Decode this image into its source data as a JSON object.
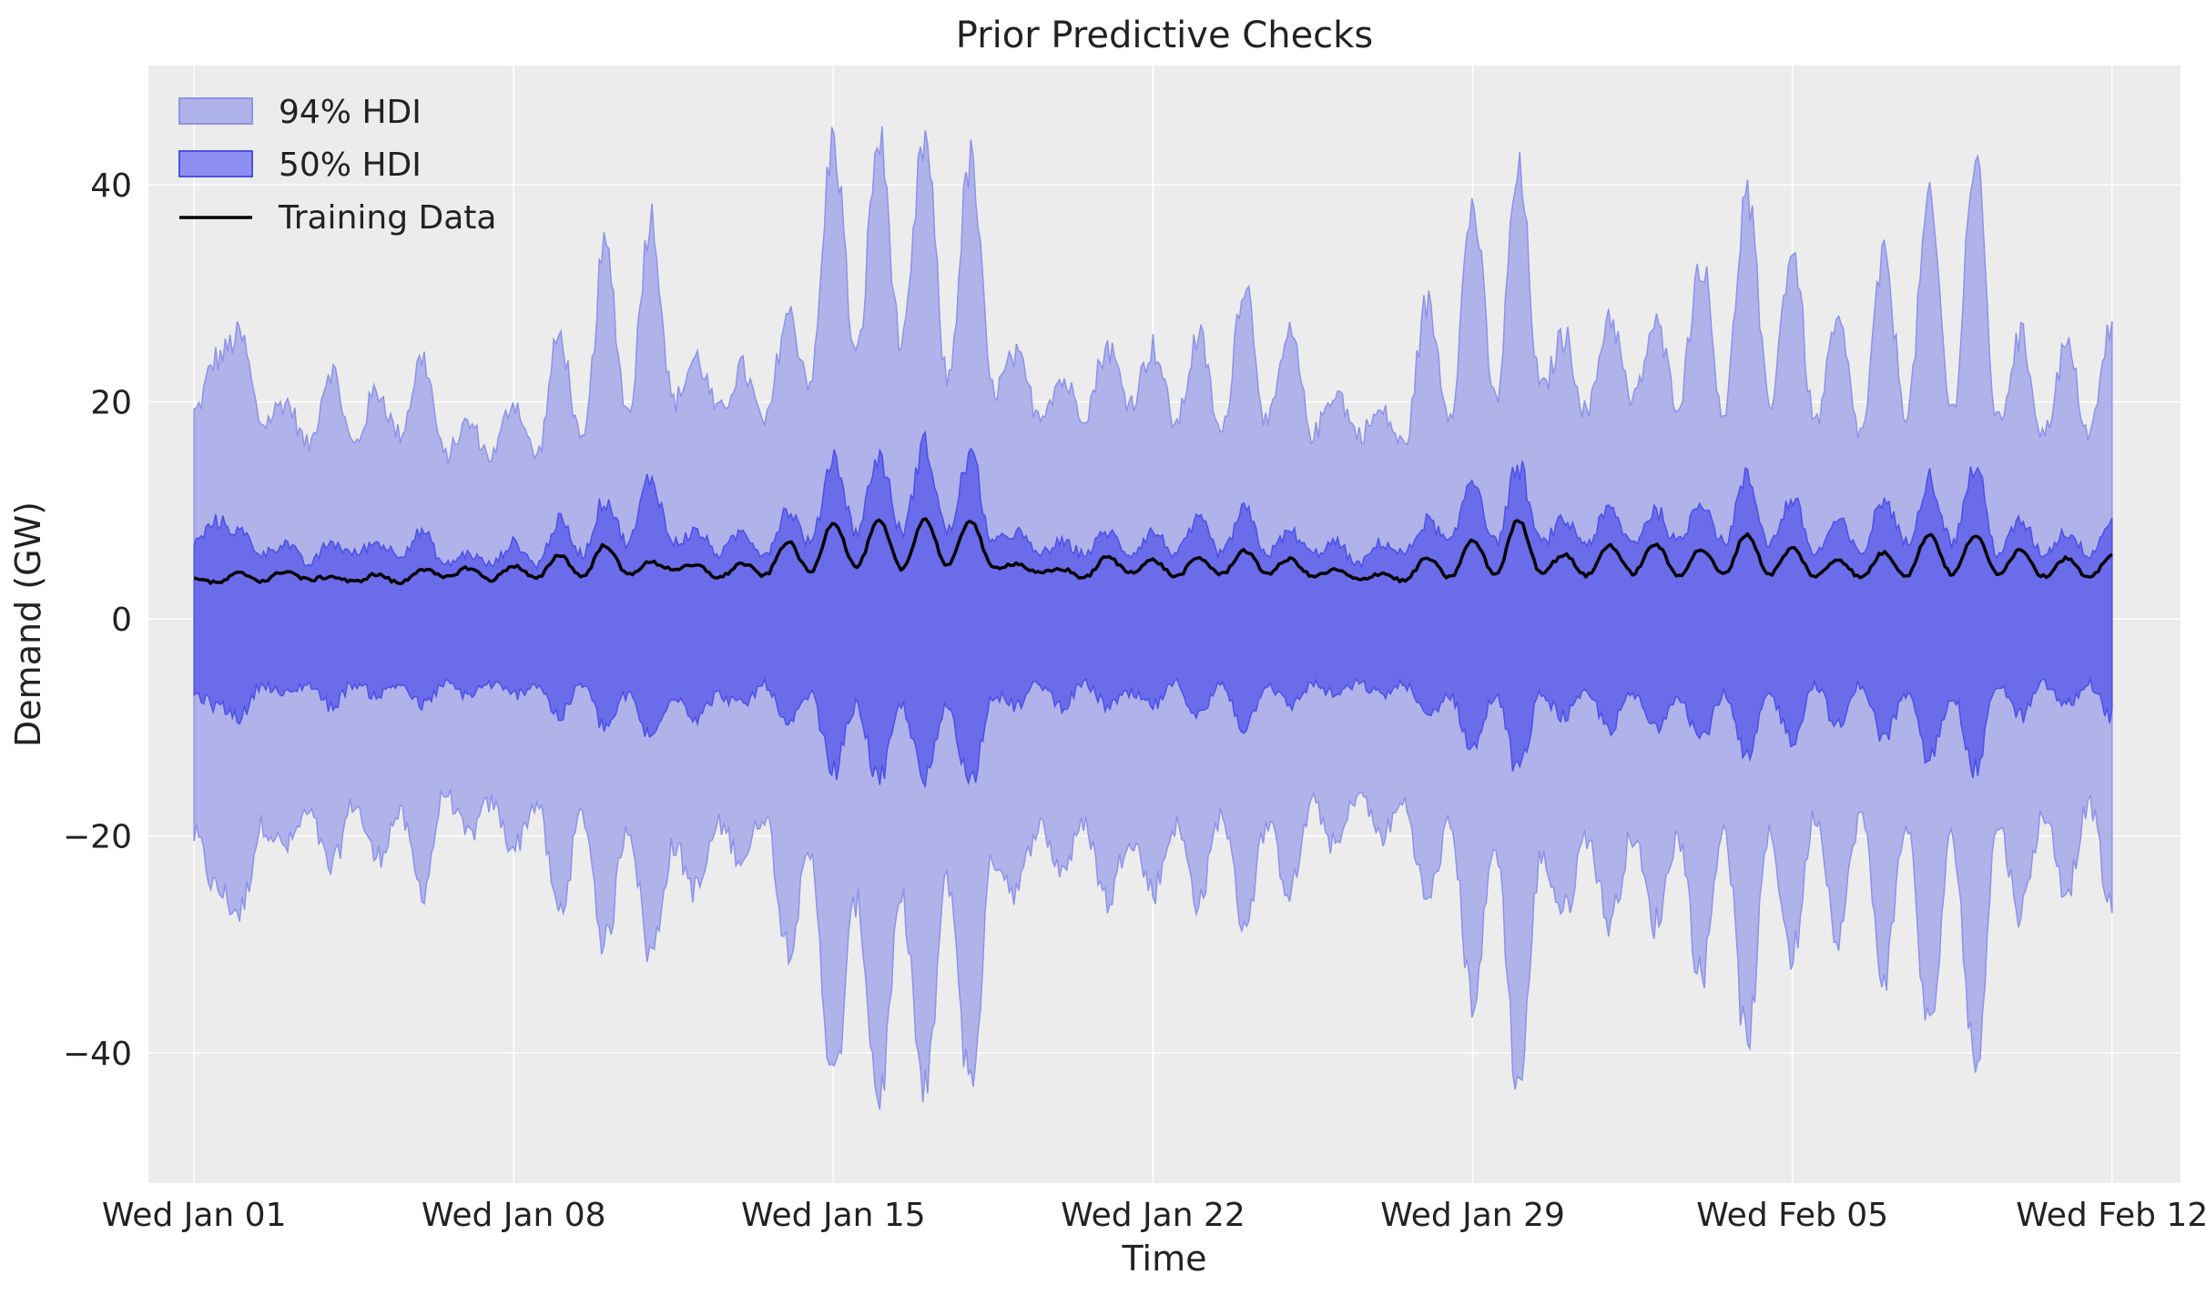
{
  "chart_data": {
    "type": "area",
    "title": "Prior Predictive Checks",
    "xlabel": "Time",
    "ylabel": "Demand (GW)",
    "ylim": [
      -52,
      51
    ],
    "xlim_days": [
      -1.0,
      43.5
    ],
    "yticks": [
      -40,
      -20,
      0,
      20,
      40
    ],
    "ytick_labels": [
      "−40",
      "−20",
      "0",
      "20",
      "40"
    ],
    "xticks": [
      0,
      7,
      14,
      21,
      28,
      35,
      42
    ],
    "xtick_labels": [
      "Wed Jan 01",
      "Wed Jan 08",
      "Wed Jan 15",
      "Wed Jan 22",
      "Wed Jan 29",
      "Wed Feb 05",
      "Wed Feb 12"
    ],
    "x_range_labels": [
      "Wed Jan 01",
      "Wed Feb 12"
    ],
    "grid": true,
    "legend_position": "top-left",
    "legend": [
      "94% HDI",
      "50% HDI",
      "Training Data"
    ],
    "colors": {
      "background": "#ececec",
      "grid": "#ffffff",
      "hdi94_fill": "#b0b3ea",
      "hdi94_edge": "#8e92e8",
      "hdi50_fill": "#6a6cea",
      "hdi50_edge": "#4d50e6",
      "training": "#000000"
    },
    "series": [
      {
        "name": "Training Data",
        "style": "line",
        "x_days": [
          0,
          0.5,
          1,
          1.5,
          2,
          2.5,
          3,
          3.5,
          4,
          4.5,
          5,
          5.5,
          6,
          6.5,
          7,
          7.5,
          8,
          8.5,
          9,
          9.5,
          10,
          10.5,
          11,
          11.5,
          12,
          12.5,
          13,
          13.5,
          14,
          14.5,
          15,
          15.5,
          16,
          16.5,
          17,
          17.5,
          18,
          18.5,
          19,
          19.5,
          20,
          20.5,
          21,
          21.5,
          22,
          22.5,
          23,
          23.5,
          24,
          24.5,
          25,
          25.5,
          26,
          26.5,
          27,
          27.5,
          28,
          28.5,
          29,
          29.5,
          30,
          30.5,
          31,
          31.5,
          32,
          32.5,
          33,
          33.5,
          34,
          34.5,
          35,
          35.5,
          36,
          36.5,
          37,
          37.5,
          38,
          38.5,
          39,
          39.5,
          40,
          40.5,
          41,
          41.5,
          42
        ],
        "values": [
          3.8,
          3.3,
          4.2,
          3.5,
          4.4,
          3.6,
          3.9,
          3.4,
          4.1,
          3.3,
          4.6,
          3.8,
          4.7,
          3.6,
          4.9,
          3.7,
          5.9,
          3.9,
          6.8,
          4.1,
          5.2,
          4.6,
          4.9,
          3.8,
          5.1,
          4.0,
          7.1,
          4.3,
          8.9,
          4.8,
          9.0,
          4.6,
          9.2,
          4.9,
          9.1,
          4.7,
          5.1,
          4.2,
          4.6,
          3.8,
          5.7,
          4.3,
          5.4,
          3.9,
          5.6,
          4.1,
          6.3,
          4.2,
          5.5,
          3.9,
          4.5,
          3.6,
          4.2,
          3.5,
          5.6,
          3.8,
          7.2,
          4.1,
          9.1,
          4.3,
          5.9,
          4.0,
          6.8,
          4.2,
          6.9,
          4.0,
          6.4,
          4.1,
          7.8,
          4.1,
          6.5,
          3.9,
          5.5,
          3.8,
          6.1,
          4.0,
          7.8,
          4.1,
          7.7,
          4.2,
          6.4,
          3.9,
          5.6,
          3.7,
          5.9
        ]
      },
      {
        "name": "94% HDI",
        "style": "band",
        "x_days": [
          0,
          0.5,
          1,
          1.5,
          2,
          2.5,
          3,
          3.5,
          4,
          4.5,
          5,
          5.5,
          6,
          6.5,
          7,
          7.5,
          8,
          8.5,
          9,
          9.5,
          10,
          10.5,
          11,
          11.5,
          12,
          12.5,
          13,
          13.5,
          14,
          14.5,
          15,
          15.5,
          16,
          16.5,
          17,
          17.5,
          18,
          18.5,
          19,
          19.5,
          20,
          20.5,
          21,
          21.5,
          22,
          22.5,
          23,
          23.5,
          24,
          24.5,
          25,
          25.5,
          26,
          26.5,
          27,
          27.5,
          28,
          28.5,
          29,
          29.5,
          30,
          30.5,
          31,
          31.5,
          32,
          32.5,
          33,
          33.5,
          34,
          34.5,
          35,
          35.5,
          36,
          36.5,
          37,
          37.5,
          38,
          38.5,
          39,
          39.5,
          40,
          40.5,
          41,
          41.5,
          42
        ],
        "upper": [
          19,
          24,
          26,
          18,
          20,
          16,
          23,
          16,
          21,
          17,
          24,
          15,
          18,
          15,
          20,
          15,
          26,
          16,
          34,
          19,
          37,
          20,
          24,
          19,
          23,
          18,
          28,
          22,
          44,
          24,
          44,
          25,
          44,
          22,
          42,
          21,
          24,
          19,
          22,
          19,
          25,
          20,
          25,
          18,
          26,
          17,
          31,
          18,
          26,
          17,
          21,
          17,
          19,
          16,
          29,
          19,
          38,
          20,
          41,
          21,
          26,
          19,
          28,
          20,
          27,
          20,
          33,
          19,
          39,
          20,
          34,
          18,
          27,
          17,
          33,
          19,
          38,
          19,
          42,
          18,
          26,
          17,
          25,
          17,
          27
        ],
        "lower": [
          -20,
          -25,
          -27,
          -19,
          -21,
          -18,
          -23,
          -17,
          -22,
          -18,
          -25,
          -16,
          -20,
          -17,
          -21,
          -17,
          -27,
          -18,
          -30,
          -19,
          -31,
          -21,
          -25,
          -19,
          -22,
          -18,
          -30,
          -22,
          -43,
          -26,
          -44,
          -26,
          -44,
          -24,
          -43,
          -22,
          -25,
          -19,
          -23,
          -19,
          -26,
          -20,
          -25,
          -19,
          -26,
          -18,
          -28,
          -19,
          -25,
          -17,
          -21,
          -16,
          -20,
          -17,
          -26,
          -19,
          -35,
          -21,
          -43,
          -22,
          -27,
          -20,
          -28,
          -20,
          -28,
          -20,
          -33,
          -19,
          -39,
          -20,
          -31,
          -18,
          -29,
          -18,
          -33,
          -19,
          -38,
          -20,
          -41,
          -19,
          -27,
          -18,
          -25,
          -17,
          -27
        ]
      },
      {
        "name": "50% HDI",
        "style": "band",
        "x_days": [
          0,
          0.5,
          1,
          1.5,
          2,
          2.5,
          3,
          3.5,
          4,
          4.5,
          5,
          5.5,
          6,
          6.5,
          7,
          7.5,
          8,
          8.5,
          9,
          9.5,
          10,
          10.5,
          11,
          11.5,
          12,
          12.5,
          13,
          13.5,
          14,
          14.5,
          15,
          15.5,
          16,
          16.5,
          17,
          17.5,
          18,
          18.5,
          19,
          19.5,
          20,
          20.5,
          21,
          21.5,
          22,
          22.5,
          23,
          23.5,
          24,
          24.5,
          25,
          25.5,
          26,
          26.5,
          27,
          27.5,
          28,
          28.5,
          29,
          29.5,
          30,
          30.5,
          31,
          31.5,
          32,
          32.5,
          33,
          33.5,
          34,
          34.5,
          35,
          35.5,
          36,
          36.5,
          37,
          37.5,
          38,
          38.5,
          39,
          39.5,
          40,
          40.5,
          41,
          41.5,
          42
        ],
        "upper": [
          7,
          9,
          8,
          6,
          7,
          5,
          7,
          6,
          7,
          6,
          8,
          5,
          6,
          5,
          7,
          5,
          9,
          6,
          11,
          7,
          13,
          7,
          8,
          6,
          8,
          6,
          10,
          7,
          15,
          8,
          15,
          8,
          16,
          8,
          15,
          7,
          8,
          6,
          7,
          6,
          8,
          6,
          8,
          6,
          9,
          6,
          10,
          6,
          8,
          6,
          7,
          5,
          7,
          6,
          9,
          7,
          13,
          7,
          14,
          7,
          9,
          7,
          10,
          7,
          10,
          7,
          11,
          7,
          13,
          7,
          11,
          6,
          9,
          6,
          11,
          7,
          13,
          7,
          14,
          6,
          9,
          6,
          8,
          6,
          9
        ],
        "lower": [
          -7,
          -8,
          -9,
          -6,
          -7,
          -6,
          -8,
          -6,
          -7,
          -6,
          -8,
          -6,
          -7,
          -6,
          -7,
          -6,
          -9,
          -6,
          -10,
          -7,
          -11,
          -7,
          -9,
          -7,
          -8,
          -6,
          -10,
          -7,
          -14,
          -8,
          -15,
          -8,
          -15,
          -8,
          -15,
          -7,
          -8,
          -6,
          -8,
          -6,
          -8,
          -7,
          -8,
          -6,
          -9,
          -6,
          -10,
          -6,
          -8,
          -6,
          -7,
          -6,
          -7,
          -6,
          -9,
          -7,
          -12,
          -7,
          -14,
          -7,
          -9,
          -7,
          -10,
          -7,
          -10,
          -7,
          -11,
          -7,
          -13,
          -7,
          -11,
          -6,
          -10,
          -6,
          -11,
          -7,
          -13,
          -7,
          -14,
          -6,
          -9,
          -6,
          -8,
          -6,
          -9
        ]
      }
    ]
  }
}
